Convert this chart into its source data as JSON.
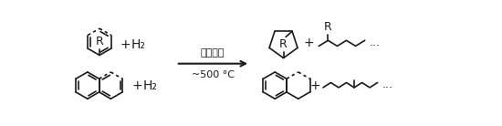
{
  "bg_color": "#ffffff",
  "line_color": "#1a1a1a",
  "arrow_color": "#1a1a1a",
  "text_color": "#1a1a1a",
  "reaction_label_line1": "固体触媒",
  "reaction_label_line2": "~500 °C",
  "plus": "+",
  "h2": "H₂",
  "r_label": "R",
  "ellipsis": "...",
  "fig_width": 5.5,
  "fig_height": 1.38,
  "dpi": 100
}
